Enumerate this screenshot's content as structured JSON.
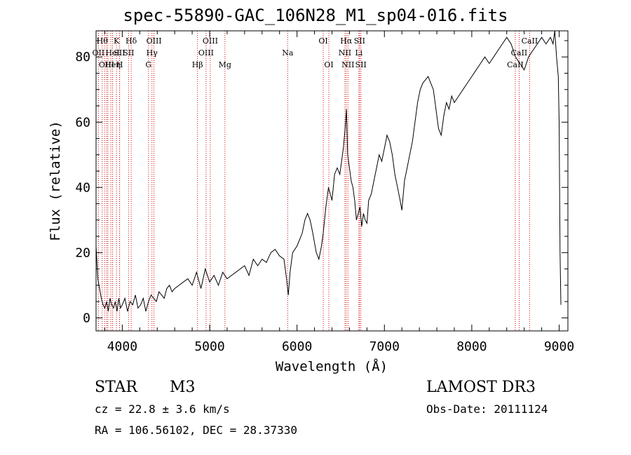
{
  "chart_data": {
    "type": "line",
    "title": "spec-55890-GAC_106N28_M1_sp04-016.fits",
    "xlabel": "Wavelength (Å)",
    "ylabel": "Flux (relative)",
    "xlim": [
      3700,
      9100
    ],
    "ylim": [
      -4,
      88
    ],
    "xticks": [
      4000,
      5000,
      6000,
      7000,
      8000,
      9000
    ],
    "yticks": [
      0,
      20,
      40,
      60,
      80
    ],
    "line_color": "#000000",
    "marker_color": "#cc0000",
    "series": [
      {
        "name": "flux",
        "x": [
          3700,
          3720,
          3740,
          3760,
          3780,
          3800,
          3820,
          3840,
          3860,
          3880,
          3900,
          3920,
          3940,
          3960,
          3980,
          4000,
          4030,
          4060,
          4090,
          4120,
          4150,
          4180,
          4210,
          4240,
          4270,
          4300,
          4330,
          4360,
          4390,
          4420,
          4450,
          4480,
          4510,
          4540,
          4570,
          4600,
          4650,
          4700,
          4750,
          4800,
          4850,
          4900,
          4950,
          5000,
          5050,
          5100,
          5150,
          5200,
          5250,
          5300,
          5350,
          5400,
          5450,
          5500,
          5550,
          5600,
          5650,
          5700,
          5750,
          5800,
          5850,
          5880,
          5900,
          5920,
          5950,
          6000,
          6030,
          6060,
          6090,
          6120,
          6150,
          6180,
          6220,
          6250,
          6280,
          6300,
          6330,
          6360,
          6400,
          6430,
          6460,
          6490,
          6510,
          6530,
          6550,
          6565,
          6580,
          6600,
          6620,
          6640,
          6660,
          6680,
          6700,
          6720,
          6740,
          6760,
          6780,
          6800,
          6820,
          6850,
          6880,
          6910,
          6940,
          6970,
          7000,
          7030,
          7060,
          7090,
          7120,
          7150,
          7180,
          7200,
          7230,
          7260,
          7290,
          7320,
          7350,
          7380,
          7410,
          7440,
          7470,
          7500,
          7530,
          7560,
          7590,
          7620,
          7650,
          7680,
          7710,
          7740,
          7770,
          7800,
          7850,
          7900,
          7950,
          8000,
          8050,
          8100,
          8150,
          8200,
          8250,
          8300,
          8350,
          8400,
          8450,
          8500,
          8550,
          8600,
          8650,
          8700,
          8750,
          8800,
          8850,
          8900,
          8930,
          8950,
          8970,
          8990,
          9000,
          9010,
          9020
        ],
        "y": [
          22,
          12,
          9,
          6,
          4,
          3,
          5,
          2,
          6,
          4,
          3,
          5,
          2,
          6,
          3,
          4,
          6,
          2,
          5,
          4,
          7,
          3,
          4,
          6,
          2,
          5,
          7,
          6,
          5,
          8,
          7,
          6,
          9,
          10,
          8,
          9,
          10,
          11,
          12,
          10,
          14,
          9,
          15,
          11,
          13,
          10,
          14,
          12,
          13,
          14,
          15,
          16,
          13,
          18,
          16,
          18,
          17,
          20,
          21,
          19,
          18,
          12,
          7,
          14,
          20,
          22,
          24,
          26,
          30,
          32,
          30,
          26,
          20,
          18,
          22,
          26,
          34,
          40,
          36,
          44,
          46,
          44,
          48,
          52,
          58,
          64,
          50,
          46,
          42,
          40,
          36,
          30,
          32,
          34,
          28,
          32,
          30,
          29,
          36,
          38,
          42,
          46,
          50,
          48,
          52,
          56,
          54,
          50,
          44,
          40,
          36,
          33,
          42,
          46,
          50,
          54,
          60,
          66,
          70,
          72,
          73,
          74,
          72,
          70,
          64,
          58,
          56,
          62,
          66,
          64,
          68,
          66,
          68,
          70,
          72,
          74,
          76,
          78,
          80,
          78,
          80,
          82,
          84,
          86,
          84,
          80,
          78,
          76,
          80,
          82,
          84,
          86,
          84,
          86,
          84,
          88,
          80,
          74,
          60,
          20,
          4
        ]
      }
    ],
    "line_markers": [
      {
        "x": 3770,
        "label": "Hθ",
        "row": 1
      },
      {
        "x": 3727,
        "label": "OII",
        "row": 2
      },
      {
        "x": 3797,
        "label": "",
        "row": 0
      },
      {
        "x": 3820,
        "label": "OIII",
        "row": 3
      },
      {
        "x": 3835,
        "label": "",
        "row": 0
      },
      {
        "x": 3869,
        "label": "",
        "row": 0
      },
      {
        "x": 3889,
        "label": "Heη",
        "row": 3
      },
      {
        "x": 3889,
        "label": "HeI",
        "row": 2
      },
      {
        "x": 3934,
        "label": "K",
        "row": 1
      },
      {
        "x": 3968,
        "label": "SII",
        "row": 2
      },
      {
        "x": 3970,
        "label": "H",
        "row": 3
      },
      {
        "x": 4102,
        "label": "Hδ",
        "row": 1
      },
      {
        "x": 4072,
        "label": "SII",
        "row": 2
      },
      {
        "x": 4300,
        "label": "G",
        "row": 3
      },
      {
        "x": 4340,
        "label": "Hγ",
        "row": 2
      },
      {
        "x": 4363,
        "label": "OIII",
        "row": 1
      },
      {
        "x": 4861,
        "label": "Hβ",
        "row": 3
      },
      {
        "x": 4959,
        "label": "OIII",
        "row": 2
      },
      {
        "x": 5007,
        "label": "OIII",
        "row": 1
      },
      {
        "x": 5175,
        "label": "Mg",
        "row": 3
      },
      {
        "x": 5893,
        "label": "Na",
        "row": 2
      },
      {
        "x": 6300,
        "label": "OI",
        "row": 1
      },
      {
        "x": 6364,
        "label": "OI",
        "row": 3
      },
      {
        "x": 6548,
        "label": "NII",
        "row": 2
      },
      {
        "x": 6563,
        "label": "Hα",
        "row": 1
      },
      {
        "x": 6583,
        "label": "NII",
        "row": 3
      },
      {
        "x": 6708,
        "label": "Li",
        "row": 2
      },
      {
        "x": 6716,
        "label": "SII",
        "row": 1
      },
      {
        "x": 6731,
        "label": "SII",
        "row": 3
      },
      {
        "x": 8498,
        "label": "CaII",
        "row": 3
      },
      {
        "x": 8542,
        "label": "CaII",
        "row": 2
      },
      {
        "x": 8662,
        "label": "CaII",
        "row": 1
      }
    ]
  },
  "info": {
    "object_class": "STAR",
    "subclass": "M3",
    "survey": "LAMOST DR3",
    "redshift": "cz = 22.8 ± 3.6 km/s",
    "obs_date": "Obs-Date: 20111124",
    "coords": "RA = 106.56102, DEC =  28.37330"
  }
}
